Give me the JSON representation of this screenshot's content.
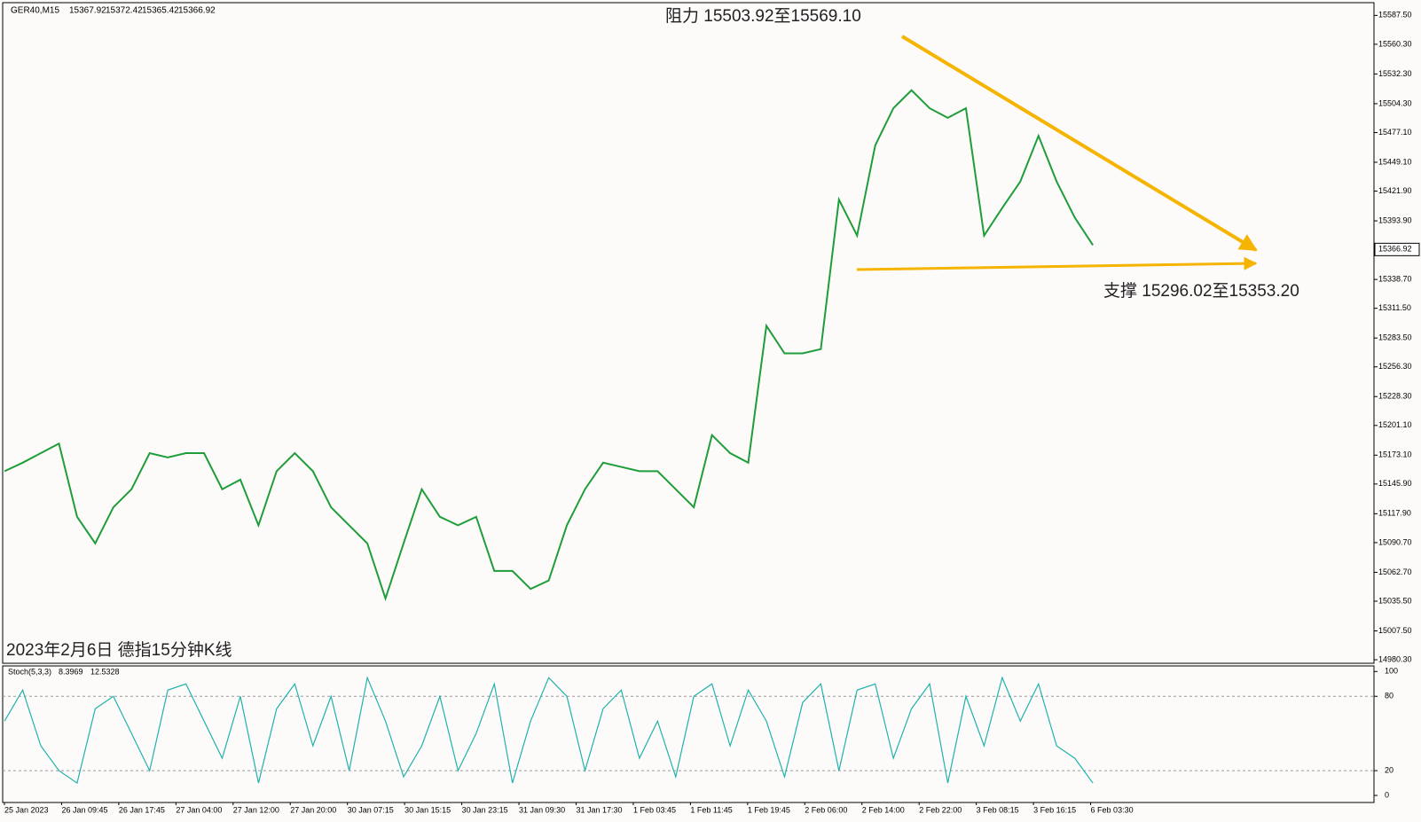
{
  "chart_data": {
    "type": "line",
    "symbol": "GER40,M15",
    "open": 15367.92,
    "high": 15372.42,
    "low": 15365.42,
    "close": 15366.92,
    "resistance_label": "阻力 15503.92至15569.10",
    "support_label": "支撑 15296.02至15353.20",
    "caption": "2023年2月6日 德指15分钟K线",
    "last_price": 15366.92,
    "x_labels": [
      "25 Jan 2023",
      "26 Jan 09:45",
      "26 Jan 17:45",
      "27 Jan 04:00",
      "27 Jan 12:00",
      "27 Jan 20:00",
      "30 Jan 07:15",
      "30 Jan 15:15",
      "30 Jan 23:15",
      "31 Jan 09:30",
      "31 Jan 17:30",
      "1 Feb 03:45",
      "1 Feb 11:45",
      "1 Feb 19:45",
      "2 Feb 06:00",
      "2 Feb 14:00",
      "2 Feb 22:00",
      "3 Feb 08:15",
      "3 Feb 16:15",
      "6 Feb 03:30"
    ],
    "series": [
      {
        "name": "GER40",
        "color": "#1f9d3a",
        "values": [
          15158,
          15166,
          15175,
          15184,
          15115,
          15090,
          15124,
          15141,
          15175,
          15171,
          15175,
          15175,
          15141,
          15150,
          15107,
          15158,
          15175,
          15158,
          15124,
          15107,
          15090,
          15038,
          15090,
          15141,
          15115,
          15107,
          15115,
          15064,
          15064,
          15047,
          15055,
          15107,
          15141,
          15166,
          15162,
          15158,
          15158,
          15141,
          15124,
          15192,
          15175,
          15166,
          15295,
          15269,
          15269,
          15273,
          15414,
          15380,
          15465,
          15500,
          15517,
          15500,
          15491,
          15500,
          15380,
          15406,
          15431,
          15474,
          15431,
          15397,
          15371
        ]
      }
    ],
    "ylim": [
      14977.4,
      15599.5
    ],
    "yticks": [
      {
        "value": 15587.5,
        "label": "15587.50"
      },
      {
        "value": 15560.3,
        "label": "15560.30"
      },
      {
        "value": 15532.3,
        "label": "15532.30"
      },
      {
        "value": 15504.3,
        "label": "15504.30"
      },
      {
        "value": 15477.1,
        "label": "15477.10"
      },
      {
        "value": 15449.1,
        "label": "15449.10"
      },
      {
        "value": 15421.9,
        "label": "15421.90"
      },
      {
        "value": 15393.9,
        "label": "15393.90"
      },
      {
        "value": 15338.7,
        "label": "15338.70"
      },
      {
        "value": 15311.5,
        "label": "15311.50"
      },
      {
        "value": 15283.5,
        "label": "15283.50"
      },
      {
        "value": 15256.3,
        "label": "15256.30"
      },
      {
        "value": 15228.3,
        "label": "15228.30"
      },
      {
        "value": 15201.1,
        "label": "15201.10"
      },
      {
        "value": 15173.1,
        "label": "15173.10"
      },
      {
        "value": 15145.9,
        "label": "15145.90"
      },
      {
        "value": 15117.9,
        "label": "15117.90"
      },
      {
        "value": 15090.7,
        "label": "15090.70"
      },
      {
        "value": 15062.7,
        "label": "15062.70"
      },
      {
        "value": 15035.5,
        "label": "15035.50"
      },
      {
        "value": 15007.5,
        "label": "15007.50"
      },
      {
        "value": 14980.3,
        "label": "14980.30"
      }
    ],
    "stoch": {
      "title": "Stoch(5,3,3)",
      "k": 8.3969,
      "d": 12.5328,
      "color": "#20b2aa",
      "values": [
        60,
        85,
        40,
        20,
        10,
        70,
        80,
        50,
        20,
        85,
        90,
        60,
        30,
        80,
        10,
        70,
        90,
        40,
        80,
        20,
        95,
        60,
        15,
        40,
        80,
        20,
        50,
        90,
        10,
        60,
        95,
        80,
        20,
        70,
        85,
        30,
        60,
        15,
        80,
        90,
        40,
        85,
        60,
        15,
        75,
        90,
        20,
        85,
        90,
        30,
        70,
        90,
        10,
        80,
        40,
        95,
        60,
        90,
        40,
        30,
        10
      ],
      "ylim": [
        -5.7,
        104.5
      ],
      "yticks": [
        100,
        80,
        20,
        0
      ],
      "levels": [
        80,
        20
      ]
    }
  }
}
